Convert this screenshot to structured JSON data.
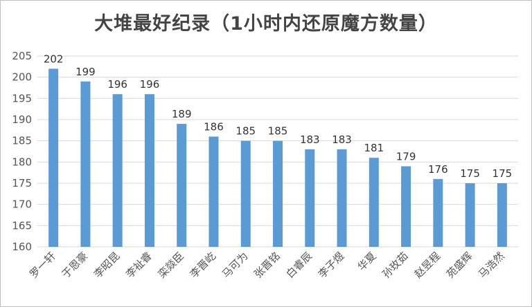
{
  "chart_data": {
    "type": "bar",
    "title": "大堆最好纪录（1小时内还原魔方数量）",
    "categories": [
      "罗一轩",
      "于恩豪",
      "李昭昆",
      "李祉睿",
      "栾燚臣",
      "李晋屹",
      "马可为",
      "张晋铭",
      "白睿辰",
      "李子煜",
      "华夏",
      "孙玫茹",
      "赵昱程",
      "苑盛辉",
      "马浩然"
    ],
    "values": [
      202,
      199,
      196,
      196,
      189,
      186,
      185,
      185,
      183,
      183,
      181,
      179,
      176,
      175,
      175
    ],
    "ylim": [
      160,
      205
    ],
    "yticks": [
      160,
      165,
      170,
      175,
      180,
      185,
      190,
      195,
      200,
      205
    ],
    "grid": true,
    "bar_color": "#5b9bd5",
    "grid_color": "#d9d9d9"
  }
}
